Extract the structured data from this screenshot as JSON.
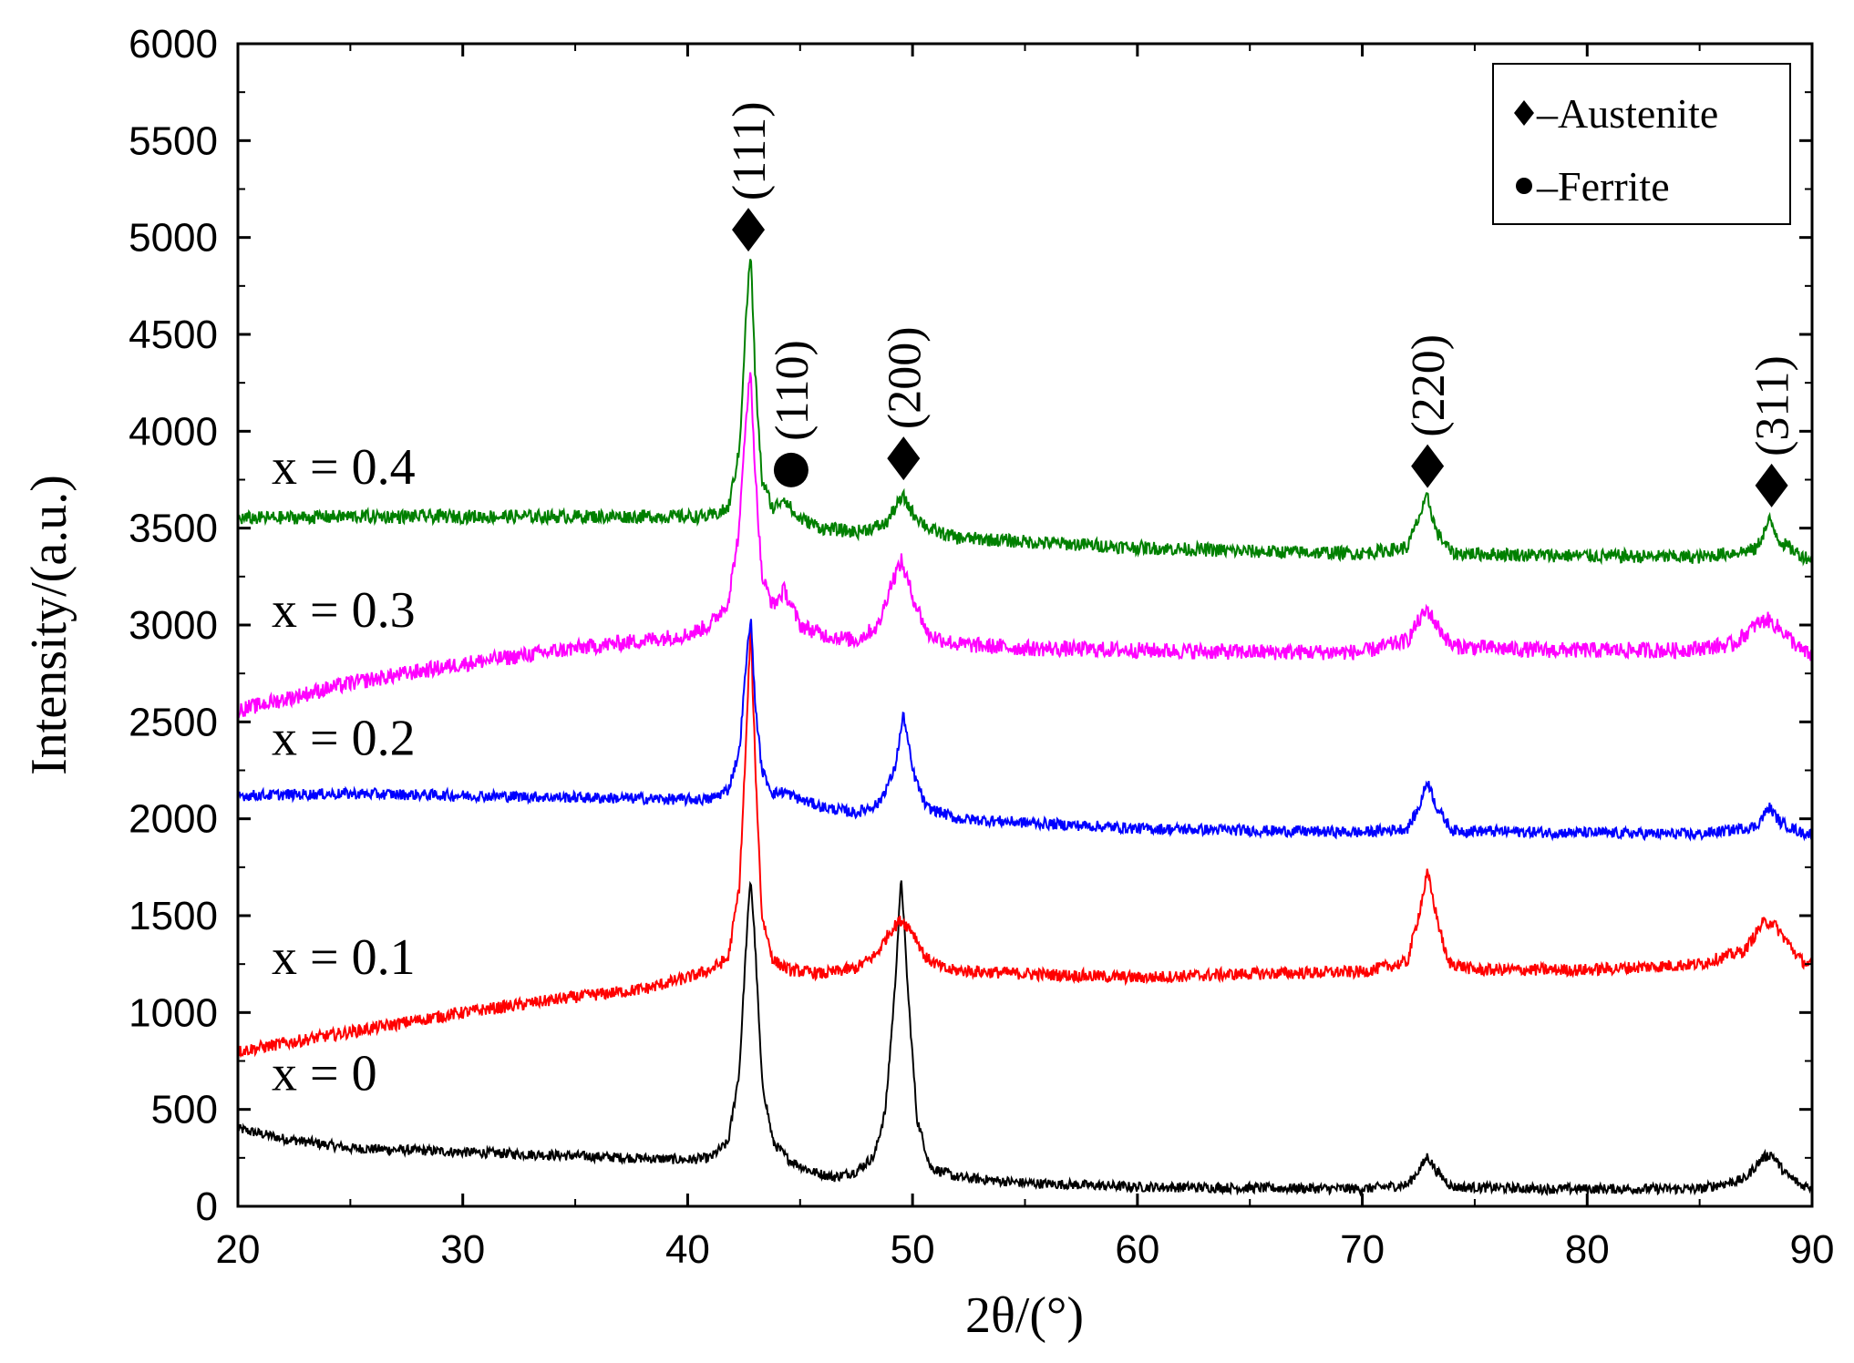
{
  "chart_data": {
    "type": "line",
    "title": "",
    "xlabel": "2θ/(°)",
    "ylabel": "Intensity/(a.u.)",
    "xlim": [
      20,
      90
    ],
    "ylim": [
      0,
      6000
    ],
    "xticks": [
      20,
      30,
      40,
      50,
      60,
      70,
      80,
      90
    ],
    "xtick_labels": [
      "20",
      "30",
      "40",
      "50",
      "60",
      "70",
      "80",
      "90"
    ],
    "yticks": [
      0,
      500,
      1000,
      1500,
      2000,
      2500,
      3000,
      3500,
      4000,
      4500,
      5000,
      5500,
      6000
    ],
    "ytick_labels": [
      "0",
      "500",
      "1000",
      "1500",
      "2000",
      "2500",
      "3000",
      "3500",
      "4000",
      "4500",
      "5000",
      "5500",
      "6000"
    ],
    "grid": false,
    "legend": {
      "position": "top-right",
      "items": [
        {
          "symbol": "diamond",
          "label": "–Austenite"
        },
        {
          "symbol": "circle",
          "label": "–Ferrite"
        }
      ]
    },
    "series": [
      {
        "name": "x = 0",
        "color": "#000000",
        "noise": 16,
        "points": [
          [
            20,
            400
          ],
          [
            22,
            350
          ],
          [
            25,
            300
          ],
          [
            30,
            280
          ],
          [
            35,
            260
          ],
          [
            40,
            240
          ],
          [
            41,
            250
          ],
          [
            41.8,
            330
          ],
          [
            42.3,
            700
          ],
          [
            42.6,
            1350
          ],
          [
            42.8,
            1700
          ],
          [
            43.0,
            1350
          ],
          [
            43.3,
            650
          ],
          [
            43.8,
            330
          ],
          [
            44.5,
            240
          ],
          [
            45.5,
            180
          ],
          [
            46.5,
            150
          ],
          [
            47.5,
            180
          ],
          [
            48.3,
            260
          ],
          [
            48.8,
            500
          ],
          [
            49.2,
            1100
          ],
          [
            49.5,
            1700
          ],
          [
            49.8,
            1100
          ],
          [
            50.2,
            450
          ],
          [
            50.8,
            200
          ],
          [
            52,
            150
          ],
          [
            55,
            120
          ],
          [
            60,
            100
          ],
          [
            65,
            95
          ],
          [
            70,
            90
          ],
          [
            72.0,
            110
          ],
          [
            72.6,
            200
          ],
          [
            72.9,
            260
          ],
          [
            73.3,
            180
          ],
          [
            74,
            100
          ],
          [
            78,
            90
          ],
          [
            85,
            90
          ],
          [
            87,
            140
          ],
          [
            87.8,
            250
          ],
          [
            88.2,
            270
          ],
          [
            88.8,
            170
          ],
          [
            89.5,
            110
          ],
          [
            90,
            100
          ]
        ]
      },
      {
        "name": "x = 0.1",
        "color": "#ff0000",
        "noise": 20,
        "points": [
          [
            20,
            800
          ],
          [
            25,
            900
          ],
          [
            30,
            1000
          ],
          [
            35,
            1080
          ],
          [
            38,
            1120
          ],
          [
            40,
            1180
          ],
          [
            41,
            1220
          ],
          [
            41.8,
            1280
          ],
          [
            42.3,
            1650
          ],
          [
            42.6,
            2400
          ],
          [
            42.8,
            3000
          ],
          [
            43.0,
            2300
          ],
          [
            43.3,
            1500
          ],
          [
            43.8,
            1270
          ],
          [
            44.5,
            1220
          ],
          [
            46,
            1200
          ],
          [
            47.5,
            1230
          ],
          [
            48.4,
            1300
          ],
          [
            49.0,
            1420
          ],
          [
            49.5,
            1480
          ],
          [
            50.0,
            1420
          ],
          [
            50.6,
            1280
          ],
          [
            51.5,
            1220
          ],
          [
            55,
            1200
          ],
          [
            60,
            1180
          ],
          [
            65,
            1200
          ],
          [
            70,
            1210
          ],
          [
            72.0,
            1260
          ],
          [
            72.5,
            1500
          ],
          [
            72.9,
            1720
          ],
          [
            73.3,
            1500
          ],
          [
            73.8,
            1260
          ],
          [
            75,
            1220
          ],
          [
            80,
            1220
          ],
          [
            85,
            1250
          ],
          [
            87,
            1320
          ],
          [
            87.8,
            1460
          ],
          [
            88.2,
            1470
          ],
          [
            88.8,
            1380
          ],
          [
            89.5,
            1270
          ],
          [
            90,
            1240
          ]
        ]
      },
      {
        "name": "x = 0.2",
        "color": "#0000ff",
        "noise": 18,
        "points": [
          [
            20,
            2120
          ],
          [
            25,
            2130
          ],
          [
            30,
            2120
          ],
          [
            35,
            2110
          ],
          [
            40,
            2100
          ],
          [
            41,
            2100
          ],
          [
            41.8,
            2150
          ],
          [
            42.3,
            2350
          ],
          [
            42.6,
            2800
          ],
          [
            42.8,
            3050
          ],
          [
            43.0,
            2600
          ],
          [
            43.3,
            2250
          ],
          [
            43.8,
            2130
          ],
          [
            44.3,
            2140
          ],
          [
            45,
            2100
          ],
          [
            46,
            2060
          ],
          [
            47.5,
            2030
          ],
          [
            48.5,
            2080
          ],
          [
            49.2,
            2250
          ],
          [
            49.6,
            2540
          ],
          [
            50.0,
            2250
          ],
          [
            50.6,
            2060
          ],
          [
            52,
            2000
          ],
          [
            55,
            1980
          ],
          [
            60,
            1950
          ],
          [
            65,
            1940
          ],
          [
            70,
            1930
          ],
          [
            72.0,
            1950
          ],
          [
            72.5,
            2050
          ],
          [
            72.9,
            2200
          ],
          [
            73.3,
            2060
          ],
          [
            74,
            1940
          ],
          [
            78,
            1930
          ],
          [
            85,
            1920
          ],
          [
            87.5,
            1960
          ],
          [
            88.1,
            2060
          ],
          [
            88.6,
            1980
          ],
          [
            89.5,
            1930
          ],
          [
            90,
            1920
          ]
        ]
      },
      {
        "name": "x = 0.3",
        "color": "#ff00ff",
        "noise": 26,
        "points": [
          [
            20,
            2560
          ],
          [
            25,
            2700
          ],
          [
            30,
            2800
          ],
          [
            35,
            2880
          ],
          [
            38,
            2920
          ],
          [
            40,
            2950
          ],
          [
            41,
            3000
          ],
          [
            41.8,
            3120
          ],
          [
            42.3,
            3500
          ],
          [
            42.6,
            4100
          ],
          [
            42.8,
            4300
          ],
          [
            43.0,
            3800
          ],
          [
            43.3,
            3250
          ],
          [
            43.8,
            3100
          ],
          [
            44.3,
            3180
          ],
          [
            45,
            3000
          ],
          [
            46,
            2950
          ],
          [
            47.5,
            2920
          ],
          [
            48.5,
            3000
          ],
          [
            49.0,
            3200
          ],
          [
            49.5,
            3330
          ],
          [
            50.0,
            3150
          ],
          [
            50.7,
            2950
          ],
          [
            52,
            2900
          ],
          [
            55,
            2880
          ],
          [
            60,
            2870
          ],
          [
            65,
            2860
          ],
          [
            70,
            2860
          ],
          [
            72.0,
            2920
          ],
          [
            72.5,
            3020
          ],
          [
            72.9,
            3080
          ],
          [
            73.3,
            3000
          ],
          [
            74,
            2890
          ],
          [
            78,
            2870
          ],
          [
            84,
            2870
          ],
          [
            86.5,
            2900
          ],
          [
            87.5,
            3000
          ],
          [
            88.0,
            3030
          ],
          [
            88.7,
            2970
          ],
          [
            89.5,
            2870
          ],
          [
            90,
            2840
          ]
        ]
      },
      {
        "name": "x = 0.4",
        "color": "#008000",
        "noise": 22,
        "points": [
          [
            20,
            3550
          ],
          [
            25,
            3560
          ],
          [
            30,
            3560
          ],
          [
            35,
            3560
          ],
          [
            40,
            3560
          ],
          [
            41,
            3560
          ],
          [
            41.8,
            3600
          ],
          [
            42.3,
            3900
          ],
          [
            42.6,
            4600
          ],
          [
            42.8,
            4930
          ],
          [
            43.0,
            4300
          ],
          [
            43.3,
            3750
          ],
          [
            43.8,
            3600
          ],
          [
            44.3,
            3660
          ],
          [
            44.8,
            3560
          ],
          [
            46,
            3500
          ],
          [
            47.5,
            3480
          ],
          [
            48.8,
            3520
          ],
          [
            49.3,
            3620
          ],
          [
            49.6,
            3660
          ],
          [
            50.0,
            3580
          ],
          [
            50.8,
            3490
          ],
          [
            52,
            3450
          ],
          [
            55,
            3430
          ],
          [
            60,
            3400
          ],
          [
            65,
            3380
          ],
          [
            70,
            3370
          ],
          [
            72.0,
            3400
          ],
          [
            72.5,
            3550
          ],
          [
            72.9,
            3660
          ],
          [
            73.3,
            3480
          ],
          [
            74,
            3370
          ],
          [
            78,
            3360
          ],
          [
            85,
            3350
          ],
          [
            87.5,
            3390
          ],
          [
            88.1,
            3540
          ],
          [
            88.6,
            3430
          ],
          [
            89.5,
            3360
          ],
          [
            90,
            3340
          ]
        ]
      }
    ],
    "series_labels": [
      {
        "text": "x = 0",
        "x": 21.5,
        "y": 600
      },
      {
        "text": "x = 0.1",
        "x": 21.5,
        "y": 1200
      },
      {
        "text": "x = 0.2",
        "x": 21.5,
        "y": 2330
      },
      {
        "text": "x = 0.3",
        "x": 21.5,
        "y": 2990
      },
      {
        "text": "x = 0.4",
        "x": 21.5,
        "y": 3730
      }
    ],
    "annotations": [
      {
        "label": "(111)",
        "marker": "diamond",
        "x": 42.7,
        "y": 5040
      },
      {
        "label": "(110)",
        "marker": "circle",
        "x": 44.6,
        "y": 3800
      },
      {
        "label": "(200)",
        "marker": "diamond",
        "x": 49.6,
        "y": 3860
      },
      {
        "label": "(220)",
        "marker": "diamond",
        "x": 72.9,
        "y": 3820
      },
      {
        "label": "(311)",
        "marker": "diamond",
        "x": 88.2,
        "y": 3720
      }
    ]
  }
}
